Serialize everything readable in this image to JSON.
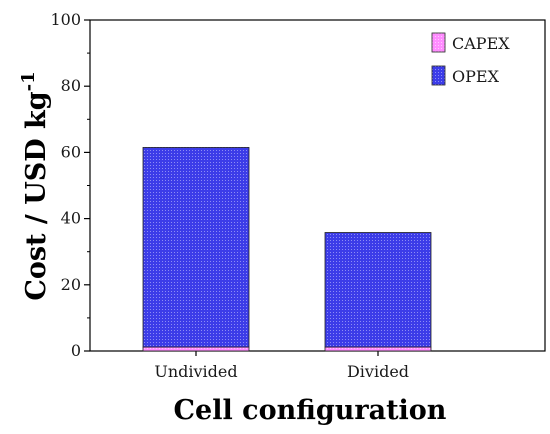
{
  "chart_data": {
    "type": "bar",
    "stacked": true,
    "categories": [
      "Undivided",
      "Divided"
    ],
    "series": [
      {
        "name": "CAPEX",
        "values": [
          1.2,
          1.2
        ],
        "color": "#ff8cff"
      },
      {
        "name": "OPEX",
        "values": [
          60.3,
          34.6
        ],
        "color": "#3c3ce8"
      }
    ],
    "ylim": [
      0,
      100
    ],
    "y_ticks": [
      0,
      20,
      40,
      60,
      80,
      100
    ],
    "xlabel": "Cell configuration",
    "ylabel_main": "Cost / USD kg",
    "ylabel_sup": "-1",
    "legend_position": "top-right",
    "grid": false
  }
}
